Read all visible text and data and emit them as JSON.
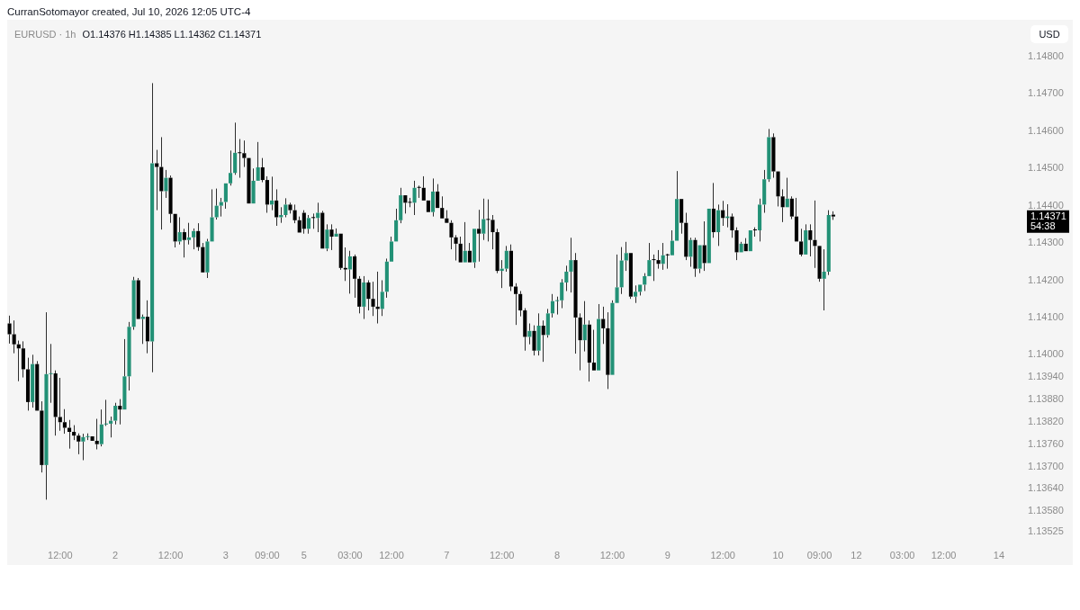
{
  "chart_data": {
    "type": "candlestick",
    "title": "EURUSD · 1h",
    "subtitle": "O1.14376 H1.14385 L1.14362 C1.14371",
    "ylabel": "USD",
    "annotations": [
      "CurranSotomayor created, Jul 10, 2026 12:05 UTC-4",
      "1.14371",
      "54:38"
    ],
    "categories": [
      null,
      null,
      null,
      null,
      null,
      null,
      null,
      null,
      null,
      null,
      null,
      "12:00",
      null,
      null,
      null,
      null,
      null,
      null,
      null,
      null,
      null,
      null,
      null,
      "2",
      null,
      null,
      null,
      null,
      null,
      null,
      null,
      null,
      null,
      null,
      null,
      "12:00",
      null,
      null,
      null,
      null,
      null,
      null,
      null,
      null,
      null,
      null,
      null,
      "3",
      null,
      null,
      null,
      null,
      null,
      null,
      null,
      null,
      "09:00",
      null,
      null,
      null,
      null,
      null,
      null,
      null,
      "5",
      null,
      null,
      null,
      null,
      null,
      null,
      null,
      null,
      null,
      "03:00",
      null,
      null,
      null,
      null,
      null,
      null,
      null,
      null,
      "12:00",
      null,
      null,
      null,
      null,
      null,
      null,
      null,
      null,
      null,
      null,
      null,
      "7",
      null,
      null,
      null,
      null,
      null,
      null,
      null,
      null,
      null,
      null,
      null,
      "12:00",
      null,
      null,
      null,
      null,
      null,
      null,
      null,
      null,
      null,
      null,
      null,
      "8",
      null,
      null,
      null,
      null,
      null,
      null,
      null,
      null,
      null,
      null,
      null,
      "12:00",
      null,
      null,
      null,
      null,
      null,
      null,
      null,
      null,
      null,
      null,
      null,
      "9",
      null,
      null,
      null,
      null,
      null,
      null,
      null,
      null,
      null,
      null,
      null,
      "12:00",
      null,
      null,
      null,
      null,
      null,
      null,
      null,
      null,
      null,
      null,
      null,
      "10",
      null,
      null,
      null,
      null,
      null,
      null,
      null,
      null,
      "09:00",
      null,
      null,
      null,
      null,
      null,
      null,
      null,
      "12",
      null,
      null,
      null,
      null,
      null,
      null,
      null,
      null,
      null,
      "03:00",
      null,
      null,
      null,
      null,
      null,
      null,
      null,
      null,
      "12:00",
      null,
      null,
      null,
      null,
      null,
      null,
      null,
      null,
      null,
      null,
      null,
      "14",
      null,
      null,
      null,
      null
    ],
    "ohlc": [
      [
        1.14084,
        1.14105,
        1.1403,
        1.14055
      ],
      [
        1.14055,
        1.14092,
        1.14004,
        1.14028
      ],
      [
        1.14028,
        1.14038,
        1.13929,
        1.14017
      ],
      [
        1.14017,
        1.14036,
        1.13939,
        1.13961
      ],
      [
        1.13961,
        1.13992,
        1.1385,
        1.13873
      ],
      [
        1.13873,
        1.14,
        1.13858,
        1.13975
      ],
      [
        1.13975,
        1.13983,
        1.13846,
        1.1385
      ],
      [
        1.1385,
        1.13875,
        1.13684,
        1.13704
      ],
      [
        1.13704,
        1.14114,
        1.13611,
        1.13948
      ],
      [
        1.13948,
        1.14029,
        1.13871,
        1.1395
      ],
      [
        1.1395,
        1.13958,
        1.13783,
        1.13833
      ],
      [
        1.13833,
        1.13938,
        1.13796,
        1.13819
      ],
      [
        1.13819,
        1.13854,
        1.13788,
        1.13804
      ],
      [
        1.13804,
        1.13825,
        1.13748,
        1.13793
      ],
      [
        1.13793,
        1.13811,
        1.13771,
        1.13783
      ],
      [
        1.13783,
        1.13789,
        1.13733,
        1.13767
      ],
      [
        1.13767,
        1.13788,
        1.13717,
        1.13779
      ],
      [
        1.13779,
        1.13789,
        1.13771,
        1.13781
      ],
      [
        1.13781,
        1.13784,
        1.13767,
        1.13769
      ],
      [
        1.13769,
        1.13828,
        1.13746,
        1.1376
      ],
      [
        1.1376,
        1.13853,
        1.13754,
        1.13813
      ],
      [
        1.13813,
        1.13879,
        1.13809,
        1.13815
      ],
      [
        1.13815,
        1.13834,
        1.13778,
        1.13823
      ],
      [
        1.13823,
        1.13871,
        1.13813,
        1.13863
      ],
      [
        1.13863,
        1.13881,
        1.13813,
        1.13853
      ],
      [
        1.13853,
        1.14042,
        1.1385,
        1.13942
      ],
      [
        1.13942,
        1.14088,
        1.13904,
        1.14075
      ],
      [
        1.14075,
        1.14209,
        1.14067,
        1.142
      ],
      [
        1.142,
        1.14206,
        1.14092,
        1.14096
      ],
      [
        1.14096,
        1.14108,
        1.14029,
        1.14102
      ],
      [
        1.14102,
        1.14146,
        1.14004,
        1.14036
      ],
      [
        1.14036,
        1.14729,
        1.13953,
        1.14514
      ],
      [
        1.14514,
        1.1455,
        1.14388,
        1.14504
      ],
      [
        1.14504,
        1.14584,
        1.14336,
        1.14439
      ],
      [
        1.14439,
        1.14496,
        1.14421,
        1.14475
      ],
      [
        1.14475,
        1.14481,
        1.14354,
        1.14378
      ],
      [
        1.14378,
        1.14379,
        1.14288,
        1.14304
      ],
      [
        1.14304,
        1.14369,
        1.14296,
        1.14329
      ],
      [
        1.14329,
        1.14338,
        1.14261,
        1.14308
      ],
      [
        1.14308,
        1.14354,
        1.14296,
        1.14315
      ],
      [
        1.14315,
        1.14339,
        1.14283,
        1.14332
      ],
      [
        1.14332,
        1.14353,
        1.14279,
        1.14289
      ],
      [
        1.14289,
        1.143,
        1.14217,
        1.14221
      ],
      [
        1.14221,
        1.14311,
        1.14206,
        1.14304
      ],
      [
        1.14304,
        1.14444,
        1.143,
        1.14369
      ],
      [
        1.14369,
        1.14446,
        1.14363,
        1.144
      ],
      [
        1.144,
        1.14421,
        1.14371,
        1.1441
      ],
      [
        1.1441,
        1.14464,
        1.14392,
        1.1446
      ],
      [
        1.1446,
        1.14548,
        1.14454,
        1.14488
      ],
      [
        1.14488,
        1.14623,
        1.14483,
        1.14542
      ],
      [
        1.14542,
        1.14579,
        1.14475,
        1.14541
      ],
      [
        1.14541,
        1.14575,
        1.14504,
        1.14528
      ],
      [
        1.14528,
        1.14529,
        1.14404,
        1.14406
      ],
      [
        1.14406,
        1.145,
        1.14404,
        1.14467
      ],
      [
        1.14467,
        1.14571,
        1.14463,
        1.14503
      ],
      [
        1.14503,
        1.14528,
        1.14463,
        1.14469
      ],
      [
        1.14469,
        1.14479,
        1.14381,
        1.14403
      ],
      [
        1.14403,
        1.14478,
        1.14388,
        1.14414
      ],
      [
        1.14414,
        1.14444,
        1.14346,
        1.14369
      ],
      [
        1.14369,
        1.14396,
        1.14354,
        1.14375
      ],
      [
        1.14375,
        1.1442,
        1.14369,
        1.14403
      ],
      [
        1.14403,
        1.14408,
        1.14379,
        1.14388
      ],
      [
        1.14388,
        1.14403,
        1.14353,
        1.14361
      ],
      [
        1.14361,
        1.14371,
        1.14325,
        1.14328
      ],
      [
        1.14381,
        1.14388,
        1.14325,
        1.14338
      ],
      [
        1.14338,
        1.14375,
        1.14325,
        1.14367
      ],
      [
        1.14367,
        1.14379,
        1.14338,
        1.14367
      ],
      [
        1.14367,
        1.14408,
        1.14329,
        1.14381
      ],
      [
        1.14381,
        1.14386,
        1.14283,
        1.14285
      ],
      [
        1.14285,
        1.1435,
        1.14278,
        1.14336
      ],
      [
        1.14336,
        1.1435,
        1.14281,
        1.14317
      ],
      [
        1.14317,
        1.14339,
        1.14313,
        1.14325
      ],
      [
        1.14325,
        1.14329,
        1.14228,
        1.14233
      ],
      [
        1.14233,
        1.14288,
        1.14198,
        1.14229
      ],
      [
        1.14229,
        1.14279,
        1.14164,
        1.14264
      ],
      [
        1.14264,
        1.14269,
        1.14153,
        1.14204
      ],
      [
        1.14204,
        1.14211,
        1.14111,
        1.14129
      ],
      [
        1.14129,
        1.14211,
        1.14096,
        1.14194
      ],
      [
        1.14194,
        1.142,
        1.14119,
        1.1415
      ],
      [
        1.1415,
        1.14196,
        1.14104,
        1.14129
      ],
      [
        1.14129,
        1.14223,
        1.14084,
        1.14123
      ],
      [
        1.14123,
        1.142,
        1.14104,
        1.14169
      ],
      [
        1.14169,
        1.14258,
        1.14153,
        1.1425
      ],
      [
        1.1425,
        1.14317,
        1.14248,
        1.14304
      ],
      [
        1.14304,
        1.14392,
        1.143,
        1.14361
      ],
      [
        1.14361,
        1.14448,
        1.14353,
        1.14428
      ],
      [
        1.14428,
        1.14429,
        1.14379,
        1.14408
      ],
      [
        1.1441,
        1.14421,
        1.14396,
        1.14408
      ],
      [
        1.14408,
        1.14467,
        1.14375,
        1.14448
      ],
      [
        1.1445,
        1.14454,
        1.14421,
        1.14448
      ],
      [
        1.14448,
        1.14479,
        1.14413,
        1.14414
      ],
      [
        1.14414,
        1.14417,
        1.14379,
        1.14383
      ],
      [
        1.14383,
        1.14473,
        1.14371,
        1.14438
      ],
      [
        1.14438,
        1.14458,
        1.14392,
        1.14394
      ],
      [
        1.14394,
        1.14425,
        1.14363,
        1.14366
      ],
      [
        1.14366,
        1.14388,
        1.1435,
        1.14354
      ],
      [
        1.14354,
        1.14361,
        1.14283,
        1.14315
      ],
      [
        1.14315,
        1.14321,
        1.14253,
        1.14298
      ],
      [
        1.14298,
        1.14317,
        1.14246,
        1.14248
      ],
      [
        1.14248,
        1.14356,
        1.14246,
        1.14279
      ],
      [
        1.14279,
        1.143,
        1.14246,
        1.14248
      ],
      [
        1.14248,
        1.14342,
        1.14233,
        1.14338
      ],
      [
        1.14338,
        1.14389,
        1.1425,
        1.14325
      ],
      [
        1.14325,
        1.14419,
        1.14308,
        1.14364
      ],
      [
        1.14364,
        1.14417,
        1.14304,
        1.14362
      ],
      [
        1.14362,
        1.14375,
        1.14283,
        1.14329
      ],
      [
        1.14329,
        1.14338,
        1.14219,
        1.14225
      ],
      [
        1.14225,
        1.14254,
        1.14179,
        1.14231
      ],
      [
        1.14231,
        1.14292,
        1.14223,
        1.14279
      ],
      [
        1.14279,
        1.14296,
        1.14171,
        1.14183
      ],
      [
        1.14183,
        1.14192,
        1.1408,
        1.14163
      ],
      [
        1.14163,
        1.14171,
        1.14103,
        1.14119
      ],
      [
        1.14119,
        1.14125,
        1.14011,
        1.14048
      ],
      [
        1.14048,
        1.14084,
        1.14028,
        1.14064
      ],
      [
        1.14064,
        1.14079,
        1.13998,
        1.14011
      ],
      [
        1.14011,
        1.14111,
        1.13998,
        1.14078
      ],
      [
        1.14078,
        1.14092,
        1.13981,
        1.14053
      ],
      [
        1.14053,
        1.14123,
        1.14046,
        1.14111
      ],
      [
        1.14111,
        1.14163,
        1.141,
        1.14144
      ],
      [
        1.14144,
        1.14156,
        1.14108,
        1.14146
      ],
      [
        1.14146,
        1.14203,
        1.14125,
        1.14194
      ],
      [
        1.14194,
        1.14239,
        1.14171,
        1.14223
      ],
      [
        1.14223,
        1.14314,
        1.14167,
        1.14254
      ],
      [
        1.14254,
        1.14273,
        1.14003,
        1.141
      ],
      [
        1.141,
        1.14111,
        1.13958,
        1.14039
      ],
      [
        1.14039,
        1.14144,
        1.14009,
        1.14081
      ],
      [
        1.14081,
        1.14092,
        1.13928,
        1.13979
      ],
      [
        1.13979,
        1.14067,
        1.13954,
        1.13958
      ],
      [
        1.13958,
        1.14136,
        1.13956,
        1.14096
      ],
      [
        1.14096,
        1.14129,
        1.14029,
        1.14071
      ],
      [
        1.14071,
        1.14114,
        1.13908,
        1.13946
      ],
      [
        1.13946,
        1.14146,
        1.13944,
        1.14139
      ],
      [
        1.14139,
        1.14269,
        1.14138,
        1.14181
      ],
      [
        1.14181,
        1.14289,
        1.14163,
        1.14253
      ],
      [
        1.14253,
        1.14303,
        1.14225,
        1.14273
      ],
      [
        1.14273,
        1.14275,
        1.1415,
        1.14156
      ],
      [
        1.14156,
        1.14186,
        1.14139,
        1.14169
      ],
      [
        1.14169,
        1.14192,
        1.14159,
        1.14188
      ],
      [
        1.14188,
        1.14219,
        1.14171,
        1.14211
      ],
      [
        1.14211,
        1.143,
        1.14209,
        1.14254
      ],
      [
        1.14256,
        1.14269,
        1.14198,
        1.14254
      ],
      [
        1.14254,
        1.14281,
        1.14231,
        1.14244
      ],
      [
        1.14244,
        1.143,
        1.14228,
        1.14267
      ],
      [
        1.14269,
        1.14271,
        1.14231,
        1.14267
      ],
      [
        1.14267,
        1.14334,
        1.14263,
        1.14306
      ],
      [
        1.14306,
        1.14493,
        1.14304,
        1.14418
      ],
      [
        1.14418,
        1.14421,
        1.14325,
        1.14354
      ],
      [
        1.14354,
        1.14381,
        1.14254,
        1.14263
      ],
      [
        1.14263,
        1.14314,
        1.14236,
        1.14308
      ],
      [
        1.14308,
        1.14314,
        1.14209,
        1.14231
      ],
      [
        1.14231,
        1.14298,
        1.14219,
        1.14294
      ],
      [
        1.14294,
        1.14358,
        1.14225,
        1.14246
      ],
      [
        1.14246,
        1.14394,
        1.14242,
        1.14392
      ],
      [
        1.14392,
        1.14461,
        1.14314,
        1.14329
      ],
      [
        1.14329,
        1.14403,
        1.14292,
        1.14388
      ],
      [
        1.14388,
        1.14413,
        1.14346,
        1.14367
      ],
      [
        1.14367,
        1.14404,
        1.14342,
        1.14371
      ],
      [
        1.14371,
        1.14379,
        1.14314,
        1.14334
      ],
      [
        1.14334,
        1.14342,
        1.14254,
        1.14275
      ],
      [
        1.14275,
        1.14303,
        1.14271,
        1.14298
      ],
      [
        1.14298,
        1.14313,
        1.14275,
        1.14278
      ],
      [
        1.14278,
        1.14338,
        1.14275,
        1.14334
      ],
      [
        1.14336,
        1.14342,
        1.14317,
        1.14334
      ],
      [
        1.14334,
        1.14419,
        1.14304,
        1.14403
      ],
      [
        1.14403,
        1.14496,
        1.14381,
        1.14471
      ],
      [
        1.14471,
        1.14606,
        1.14464,
        1.14584
      ],
      [
        1.14584,
        1.14594,
        1.14475,
        1.14492
      ],
      [
        1.14492,
        1.14492,
        1.14398,
        1.14425
      ],
      [
        1.14425,
        1.14444,
        1.14356,
        1.14396
      ],
      [
        1.14396,
        1.14475,
        1.14392,
        1.14419
      ],
      [
        1.14419,
        1.14425,
        1.14364,
        1.14371
      ],
      [
        1.14371,
        1.14421,
        1.14303,
        1.14304
      ],
      [
        1.14304,
        1.14338,
        1.14264,
        1.14269
      ],
      [
        1.14269,
        1.1435,
        1.14267,
        1.14334
      ],
      [
        1.14334,
        1.1435,
        1.14264,
        1.14308
      ],
      [
        1.14308,
        1.14414,
        1.14233,
        1.14292
      ],
      [
        1.14292,
        1.14296,
        1.14196,
        1.14204
      ],
      [
        1.14204,
        1.14283,
        1.14119,
        1.14223
      ],
      [
        1.14223,
        1.14388,
        1.14214,
        1.14375
      ],
      [
        1.14376,
        1.14385,
        1.14362,
        1.14371
      ],
      null,
      null,
      null,
      null,
      null,
      null,
      null,
      null,
      null,
      null,
      null,
      null,
      null,
      null,
      null,
      null,
      null,
      null,
      null,
      null,
      null,
      null,
      null,
      null,
      null,
      null,
      null,
      null,
      null,
      null,
      null,
      null,
      null,
      null,
      null,
      null,
      null,
      null,
      null,
      null
    ],
    "colors": [
      "#000000",
      "#000000",
      "#000000",
      "#000000",
      "#000000",
      "#229176",
      "#000000",
      "#000000",
      "#229176",
      "#229176",
      "#000000",
      "#000000",
      "#000000",
      "#000000",
      "#000000",
      "#000000",
      "#229176",
      "#229176",
      "#000000",
      "#000000",
      "#229176",
      "#229176",
      "#229176",
      "#229176",
      "#000000",
      "#229176",
      "#229176",
      "#229176",
      "#000000",
      "#229176",
      "#000000",
      "#229176",
      "#000000",
      "#000000",
      "#229176",
      "#000000",
      "#000000",
      "#229176",
      "#000000",
      "#229176",
      "#229176",
      "#000000",
      "#000000",
      "#229176",
      "#229176",
      "#229176",
      "#229176",
      "#229176",
      "#229176",
      "#229176",
      "#000000",
      "#000000",
      "#000000",
      "#229176",
      "#229176",
      "#000000",
      "#000000",
      "#229176",
      "#000000",
      "#229176",
      "#229176",
      "#000000",
      "#000000",
      "#000000",
      "#000000",
      "#229176",
      "#000000",
      "#229176",
      "#000000",
      "#229176",
      "#000000",
      "#229176",
      "#000000",
      "#000000",
      "#229176",
      "#000000",
      "#000000",
      "#229176",
      "#000000",
      "#000000",
      "#000000",
      "#229176",
      "#229176",
      "#229176",
      "#229176",
      "#229176",
      "#000000",
      "#000000",
      "#229176",
      "#000000",
      "#000000",
      "#000000",
      "#229176",
      "#000000",
      "#000000",
      "#000000",
      "#000000",
      "#000000",
      "#000000",
      "#229176",
      "#000000",
      "#229176",
      "#000000",
      "#229176",
      "#000000",
      "#000000",
      "#000000",
      "#229176",
      "#229176",
      "#000000",
      "#000000",
      "#000000",
      "#000000",
      "#229176",
      "#000000",
      "#229176",
      "#000000",
      "#229176",
      "#229176",
      "#229176",
      "#229176",
      "#229176",
      "#229176",
      "#000000",
      "#000000",
      "#229176",
      "#000000",
      "#000000",
      "#229176",
      "#000000",
      "#000000",
      "#229176",
      "#229176",
      "#229176",
      "#229176",
      "#000000",
      "#229176",
      "#229176",
      "#229176",
      "#229176",
      "#000000",
      "#000000",
      "#229176",
      "#000000",
      "#229176",
      "#229176",
      "#000000",
      "#000000",
      "#229176",
      "#000000",
      "#229176",
      "#000000",
      "#229176",
      "#000000",
      "#229176",
      "#000000",
      "#229176",
      "#000000",
      "#000000",
      "#229176",
      "#000000",
      "#229176",
      "#000000",
      "#229176",
      "#229176",
      "#229176",
      "#000000",
      "#000000",
      "#000000",
      "#229176",
      "#000000",
      "#000000",
      "#000000",
      "#229176",
      "#000000",
      "#000000",
      "#000000",
      "#229176",
      "#229176",
      "#000000",
      null,
      null,
      null,
      null,
      null,
      null,
      null,
      null,
      null,
      null,
      null,
      null,
      null,
      null,
      null,
      null,
      null,
      null,
      null,
      null,
      null,
      null,
      null,
      null,
      null,
      null,
      null,
      null,
      null,
      null,
      null,
      null,
      null,
      null,
      null,
      null,
      null,
      null,
      null,
      null
    ],
    "ylim": [
      1.13525,
      1.148
    ],
    "yticks": [
      {
        "value": 1.148,
        "label": "1.14800"
      },
      {
        "value": 1.147,
        "label": "1.14700"
      },
      {
        "value": 1.146,
        "label": "1.14600"
      },
      {
        "value": 1.145,
        "label": "1.14500"
      },
      {
        "value": 1.144,
        "label": "1.14400"
      },
      {
        "value": 1.143,
        "label": "1.14300"
      },
      {
        "value": 1.142,
        "label": "1.14200"
      },
      {
        "value": 1.141,
        "label": "1.14100"
      },
      {
        "value": 1.14,
        "label": "1.14000"
      },
      {
        "value": 1.1394,
        "label": "1.13940"
      },
      {
        "value": 1.1388,
        "label": "1.13880"
      },
      {
        "value": 1.1382,
        "label": "1.13820"
      },
      {
        "value": 1.1376,
        "label": "1.13760"
      },
      {
        "value": 1.137,
        "label": "1.13700"
      },
      {
        "value": 1.1364,
        "label": "1.13640"
      },
      {
        "value": 1.1358,
        "label": "1.13580"
      },
      {
        "value": 1.13525,
        "label": "1.13525"
      }
    ]
  }
}
